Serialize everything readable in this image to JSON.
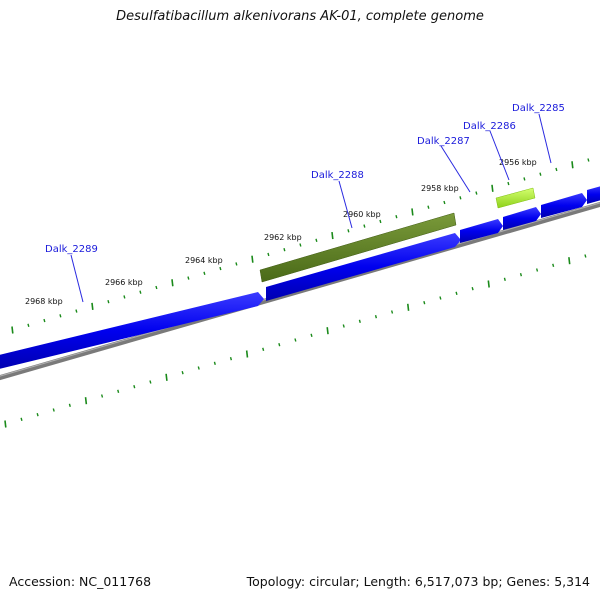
{
  "header": {
    "title": "Desulfatibacillum alkenivorans AK-01, complete genome"
  },
  "footer": {
    "accession": "Accession: NC_011768",
    "summary": "Topology: circular; Length: 6,517,073 bp; Genes: 5,314"
  },
  "map": {
    "colors": {
      "gene_forward": "#0000ee",
      "gene_highlight_dark": "#5a7a1e",
      "gene_highlight_light": "#a8f02a",
      "backbone": "#808080",
      "ticks": "#1a8a1a",
      "gene_label": "#1a1adb"
    },
    "ticks": [
      {
        "kbp": 2968,
        "label": "2968 kbp"
      },
      {
        "kbp": 2966,
        "label": "2966 kbp"
      },
      {
        "kbp": 2964,
        "label": "2964 kbp"
      },
      {
        "kbp": 2962,
        "label": "2962 kbp"
      },
      {
        "kbp": 2960,
        "label": "2960 kbp"
      },
      {
        "kbp": 2958,
        "label": "2958 kbp"
      },
      {
        "kbp": 2956,
        "label": "2956 kbp"
      }
    ],
    "genes": [
      {
        "name": "Dalk_2289"
      },
      {
        "name": "Dalk_2288"
      },
      {
        "name": "Dalk_2287"
      },
      {
        "name": "Dalk_2286"
      },
      {
        "name": "Dalk_2285"
      }
    ]
  }
}
